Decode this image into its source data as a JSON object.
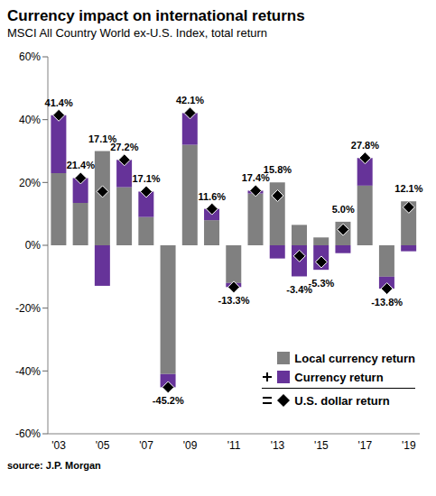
{
  "chart_data": {
    "type": "bar",
    "title": "Currency impact on international returns",
    "subtitle": "MSCI All Country World ex-U.S. Index, total return",
    "annotations": [
      "source: J.P. Morgan"
    ],
    "categories": [
      "'03",
      null,
      "'05",
      null,
      "'07",
      null,
      "'09",
      null,
      "'11",
      null,
      "'13",
      null,
      "'15",
      null,
      "'17",
      null,
      "'19"
    ],
    "stacked": true,
    "grid": false,
    "legend": "lower right",
    "ylim": [
      -60,
      60
    ],
    "yticks": [
      {
        "value": -60,
        "label": "-60%"
      },
      {
        "value": -40,
        "label": "-40%"
      },
      {
        "value": -20,
        "label": "-20%"
      },
      {
        "value": 0,
        "label": "0%"
      },
      {
        "value": 20,
        "label": "20%"
      },
      {
        "value": 40,
        "label": "40%"
      },
      {
        "value": 60,
        "label": "60%"
      }
    ],
    "series": [
      {
        "name": "Local currency return",
        "type": "bar",
        "color": "#808080",
        "values": [
          23,
          13.5,
          30,
          18.5,
          9,
          -41,
          32,
          8,
          -12,
          16.5,
          20,
          6.5,
          2.5,
          7.5,
          19,
          -10,
          14
        ]
      },
      {
        "name": "Currency return",
        "type": "bar",
        "color": "#663399",
        "values": [
          18.4,
          7.9,
          -12.9,
          8.7,
          8.1,
          -4.2,
          10.1,
          3.6,
          -1.3,
          0.9,
          -4.2,
          -9.9,
          -7.8,
          -2.5,
          8.8,
          -3.8,
          -1.9
        ]
      },
      {
        "name": "U.S. dollar return",
        "type": "scatter",
        "marker": "diamond",
        "color": "#000000",
        "data_labels": true,
        "values": [
          41.4,
          21.4,
          17.1,
          27.2,
          17.1,
          -45.2,
          42.1,
          11.6,
          -13.3,
          17.4,
          15.8,
          -3.4,
          -5.3,
          5.0,
          27.8,
          -13.8,
          12.1
        ],
        "value_labels": [
          "41.4%",
          "21.4%",
          "17.1%",
          "27.2%",
          "17.1%",
          "-45.2%",
          "42.1%",
          "11.6%",
          "-13.3%",
          "17.4%",
          "15.8%",
          "-3.4%",
          "-5.3%",
          "5.0%",
          "27.8%",
          "-13.8%",
          "12.1%"
        ]
      }
    ]
  }
}
